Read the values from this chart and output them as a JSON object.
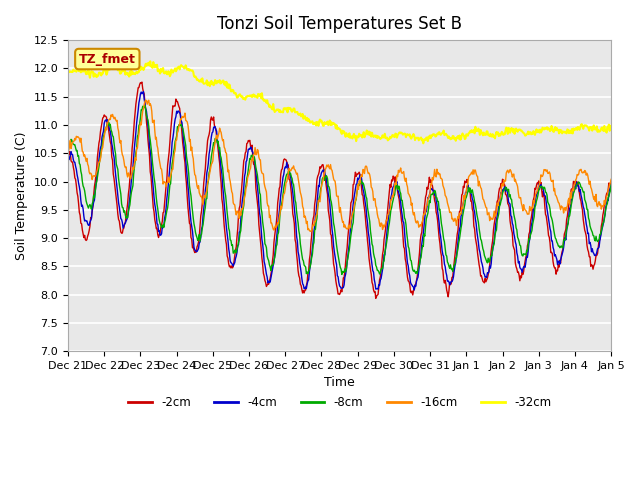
{
  "title": "Tonzi Soil Temperatures Set B",
  "xlabel": "Time",
  "ylabel": "Soil Temperature (C)",
  "ylim": [
    7.0,
    12.5
  ],
  "yticks": [
    7.0,
    7.5,
    8.0,
    8.5,
    9.0,
    9.5,
    10.0,
    10.5,
    11.0,
    11.5,
    12.0,
    12.5
  ],
  "x_tick_labels": [
    "Dec 21",
    "Dec 22",
    "Dec 23",
    "Dec 24",
    "Dec 25",
    "Dec 26",
    "Dec 27",
    "Dec 28",
    "Dec 29",
    "Dec 30",
    "Dec 31",
    "Jan 1",
    "Jan 2",
    "Jan 3",
    "Jan 4",
    "Jan 5"
  ],
  "colors": {
    "-2cm": "#cc0000",
    "-4cm": "#0000cc",
    "-8cm": "#00aa00",
    "-16cm": "#ff8800",
    "-32cm": "#ffff00"
  },
  "legend_label": "TZ_fmet",
  "legend_box_color": "#ffff99",
  "legend_box_edge": "#cc8800",
  "bg_color": "#e8e8e8",
  "grid_color": "#ffffff"
}
